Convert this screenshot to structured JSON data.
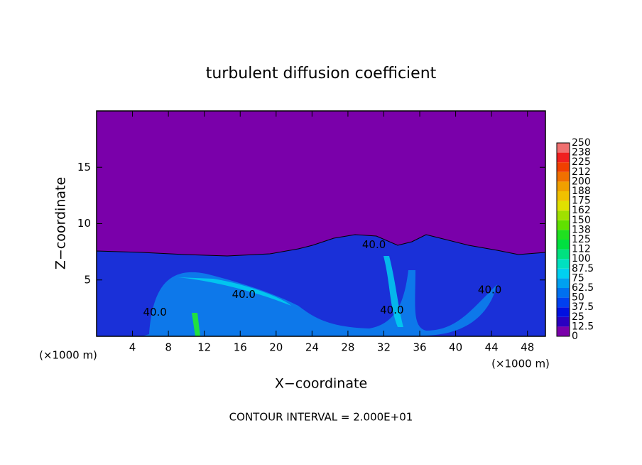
{
  "chart_data": {
    "type": "contour",
    "title": "turbulent diffusion coefficient",
    "xlabel": "X−coordinate",
    "ylabel": "Z−coordinate",
    "x_unit": "(×1000 m)",
    "y_unit": "(×1000 m)",
    "footnote": "CONTOUR INTERVAL = 2.000E+01",
    "xlim": [
      0,
      50
    ],
    "ylim": [
      0,
      20
    ],
    "xticks": [
      4,
      8,
      12,
      16,
      20,
      24,
      28,
      32,
      36,
      40,
      44,
      48
    ],
    "yticks": [
      5,
      10,
      15
    ],
    "contour_labels": [
      {
        "text": "40.0",
        "x": 30.9,
        "y": 8.1
      },
      {
        "text": "40.0",
        "x": 16.4,
        "y": 3.7
      },
      {
        "text": "40.0",
        "x": 32.9,
        "y": 2.3
      },
      {
        "text": "40.0",
        "x": 43.8,
        "y": 4.1
      },
      {
        "text": "40.0",
        "x": 6.5,
        "y": 2.1
      }
    ],
    "colorbar": {
      "levels": [
        0,
        12.5,
        25,
        37.5,
        50,
        62.5,
        75,
        87.5,
        100,
        112,
        125,
        138,
        150,
        162,
        175,
        188,
        200,
        212,
        225,
        238,
        250
      ],
      "colors": [
        "#7a00aa",
        "#2a00c0",
        "#0010e0",
        "#0040f0",
        "#0070f0",
        "#00a0f0",
        "#00d0f0",
        "#00e0c0",
        "#00e080",
        "#00e040",
        "#20e020",
        "#60e000",
        "#a0e000",
        "#e0e000",
        "#f0c000",
        "#f0a000",
        "#f07000",
        "#f04000",
        "#f02020",
        "#f07070"
      ]
    }
  }
}
